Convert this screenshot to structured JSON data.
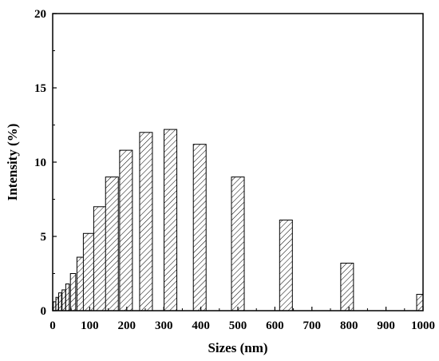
{
  "chart_data": {
    "type": "bar",
    "xlabel": "Sizes (nm)",
    "ylabel": "Intensity (%)",
    "xlim": [
      0,
      1000
    ],
    "ylim": [
      0,
      20
    ],
    "xticks": [
      0,
      100,
      200,
      300,
      400,
      500,
      600,
      700,
      800,
      900,
      1000
    ],
    "yticks": [
      0,
      5,
      10,
      15,
      20
    ],
    "grid": false,
    "bar_fill": "hatched",
    "points": [
      {
        "x": 5,
        "y": 0.6
      },
      {
        "x": 12,
        "y": 0.9
      },
      {
        "x": 20,
        "y": 1.2
      },
      {
        "x": 30,
        "y": 1.4
      },
      {
        "x": 40,
        "y": 1.8
      },
      {
        "x": 55,
        "y": 2.5
      },
      {
        "x": 75,
        "y": 3.6
      },
      {
        "x": 100,
        "y": 5.2
      },
      {
        "x": 128,
        "y": 7.0
      },
      {
        "x": 160,
        "y": 9.0
      },
      {
        "x": 198,
        "y": 10.8
      },
      {
        "x": 252,
        "y": 12.0
      },
      {
        "x": 318,
        "y": 12.2
      },
      {
        "x": 397,
        "y": 11.2
      },
      {
        "x": 500,
        "y": 9.0
      },
      {
        "x": 630,
        "y": 6.1
      },
      {
        "x": 795,
        "y": 3.2
      },
      {
        "x": 1000,
        "y": 1.1
      }
    ]
  },
  "colors": {
    "axis": "#000000",
    "bar_stroke": "#000000",
    "bar_fill": "#ffffff"
  }
}
